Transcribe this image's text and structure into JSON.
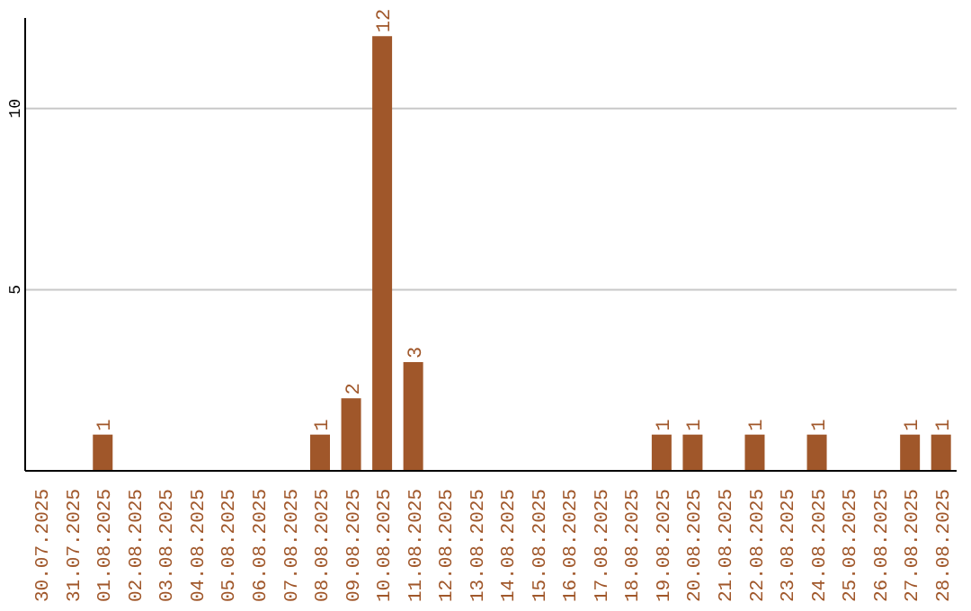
{
  "chart_data": {
    "type": "bar",
    "categories": [
      "30.07.2025",
      "31.07.2025",
      "01.08.2025",
      "02.08.2025",
      "03.08.2025",
      "04.08.2025",
      "05.08.2025",
      "06.08.2025",
      "07.08.2025",
      "08.08.2025",
      "09.08.2025",
      "10.08.2025",
      "11.08.2025",
      "12.08.2025",
      "13.08.2025",
      "14.08.2025",
      "15.08.2025",
      "16.08.2025",
      "17.08.2025",
      "18.08.2025",
      "19.08.2025",
      "20.08.2025",
      "21.08.2025",
      "22.08.2025",
      "23.08.2025",
      "24.08.2025",
      "25.08.2025",
      "26.08.2025",
      "27.08.2025",
      "28.08.2025"
    ],
    "values": [
      0,
      0,
      1,
      0,
      0,
      0,
      0,
      0,
      0,
      1,
      2,
      12,
      3,
      0,
      0,
      0,
      0,
      0,
      0,
      0,
      1,
      1,
      0,
      1,
      0,
      1,
      0,
      0,
      1,
      1
    ],
    "value_labels": [
      null,
      null,
      "1",
      null,
      null,
      null,
      null,
      null,
      null,
      "1",
      "2",
      "12",
      "3",
      null,
      null,
      null,
      null,
      null,
      null,
      null,
      "1",
      "1",
      null,
      "1",
      null,
      "1",
      null,
      null,
      "1",
      "1"
    ],
    "color": "#a0572a",
    "ylim": [
      0,
      12.5
    ],
    "yticks": [
      5,
      10
    ],
    "grid": "y"
  }
}
